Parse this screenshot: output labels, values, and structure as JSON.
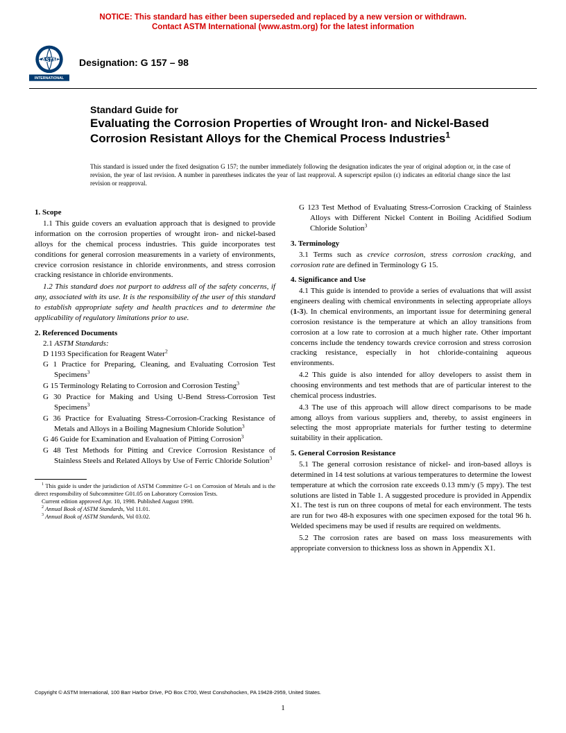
{
  "notice": {
    "line1": "NOTICE: This standard has either been superseded and replaced by a new version or withdrawn.",
    "line2": "Contact ASTM International (www.astm.org) for the latest information",
    "color": "#d40000"
  },
  "header": {
    "designation_label": "Designation: G 157 – 98",
    "logo_text_top": "ASTM",
    "logo_text_bottom": "INTERNATIONAL"
  },
  "title": {
    "lead": "Standard Guide for",
    "main": "Evaluating the Corrosion Properties of Wrought Iron- and Nickel-Based Corrosion Resistant Alloys for the Chemical Process Industries",
    "sup": "1"
  },
  "issuance": "This standard is issued under the fixed designation G 157; the number immediately following the designation indicates the year of original adoption or, in the case of revision, the year of last revision. A number in parentheses indicates the year of last reapproval. A superscript epsilon (ε) indicates an editorial change since the last revision or reapproval.",
  "sections": {
    "s1": {
      "heading": "1. Scope",
      "p1": "1.1 This guide covers an evaluation approach that is designed to provide information on the corrosion properties of wrought iron- and nickel-based alloys for the chemical process industries. This guide incorporates test conditions for general corrosion measurements in a variety of environments, crevice corrosion resistance in chloride environments, and stress corrosion cracking resistance in chloride environments.",
      "p2": "1.2 This standard does not purport to address all of the safety concerns, if any, associated with its use. It is the responsibility of the user of this standard to establish appropriate safety and health practices and to determine the applicability of regulatory limitations prior to use."
    },
    "s2": {
      "heading": "2. Referenced Documents",
      "sub": "2.1 ASTM Standards:",
      "refs": [
        {
          "t": "D 1193  Specification for Reagent Water",
          "s": "2"
        },
        {
          "t": "G 1  Practice for Preparing, Cleaning, and Evaluating Corrosion Test Specimens",
          "s": "3"
        },
        {
          "t": "G 15  Terminology Relating to Corrosion and Corrosion Testing",
          "s": "3"
        },
        {
          "t": "G 30  Practice for Making and Using U-Bend Stress-Corrosion Test Specimens",
          "s": "3"
        },
        {
          "t": "G 36  Practice for Evaluating Stress-Corrosion-Cracking Resistance of Metals and Alloys in a Boiling Magnesium Chloride Solution",
          "s": "3"
        },
        {
          "t": "G 46  Guide for Examination and Evaluation of Pitting Corrosion",
          "s": "3"
        },
        {
          "t": "G 48  Test Methods for Pitting and Crevice Corrosion Resistance of Stainless Steels and Related Alloys by Use of Ferric Chloride Solution",
          "s": "3"
        }
      ]
    },
    "s2_cont": {
      "ref": {
        "t": "G 123  Test Method of Evaluating Stress-Corrosion Cracking of Stainless Alloys with Different Nickel Content in Boiling Acidified Sodium Chloride Solution",
        "s": "3"
      }
    },
    "s3": {
      "heading": "3. Terminology",
      "p1_a": "3.1 Terms such as ",
      "p1_b": "crevice corrosion, stress corrosion cracking",
      "p1_c": ", and ",
      "p1_d": "corrosion rate",
      "p1_e": " are defined in Terminology G 15."
    },
    "s4": {
      "heading": "4. Significance and Use",
      "p1": "4.1 This guide is intended to provide a series of evaluations that will assist engineers dealing with chemical environments in selecting appropriate alloys (1-3). In chemical environments, an important issue for determining general corrosion resistance is the temperature at which an alloy transitions from corrosion at a low rate to corrosion at a much higher rate. Other important concerns include the tendency towards crevice corrosion and stress corrosion cracking resistance, especially in hot chloride-containing aqueous environments.",
      "p2": "4.2 This guide is also intended for alloy developers to assist them in choosing environments and test methods that are of particular interest to the chemical process industries.",
      "p3": "4.3 The use of this approach will allow direct comparisons to be made among alloys from various suppliers and, thereby, to assist engineers in selecting the most appropriate materials for further testing to determine suitability in their application."
    },
    "s5": {
      "heading": "5. General Corrosion Resistance",
      "p1": "5.1 The general corrosion resistance of nickel- and iron-based alloys is determined in 14 test solutions at various temperatures to determine the lowest temperature at which the corrosion rate exceeds 0.13 mm/y (5 mpy). The test solutions are listed in Table 1. A suggested procedure is provided in Appendix X1. The test is run on three coupons of metal for each environment. The tests are run for two 48-h exposures with one specimen exposed for the total 96 h. Welded specimens may be used if results are required on weldments.",
      "p2": "5.2 The corrosion rates are based on mass loss measurements with appropriate conversion to thickness loss as shown in Appendix X1."
    }
  },
  "footnotes": {
    "f1": "This guide is under the jurisdiction of ASTM Committee G-1 on Corrosion of Metals and is the direct responsibility of Subcommittee G01.05 on Laboratory Corrosion Tests.",
    "f1b": "Current edition approved Apr. 10, 1998. Published August 1998.",
    "f2_a": "Annual Book of ASTM Standards",
    "f2_b": ", Vol 11.01.",
    "f3_a": "Annual Book of ASTM Standards",
    "f3_b": ", Vol 03.02."
  },
  "footer": {
    "copyright": "Copyright © ASTM International, 100 Barr Harbor Drive, PO Box C700, West Conshohocken, PA 19428-2959, United States.",
    "page": "1"
  }
}
